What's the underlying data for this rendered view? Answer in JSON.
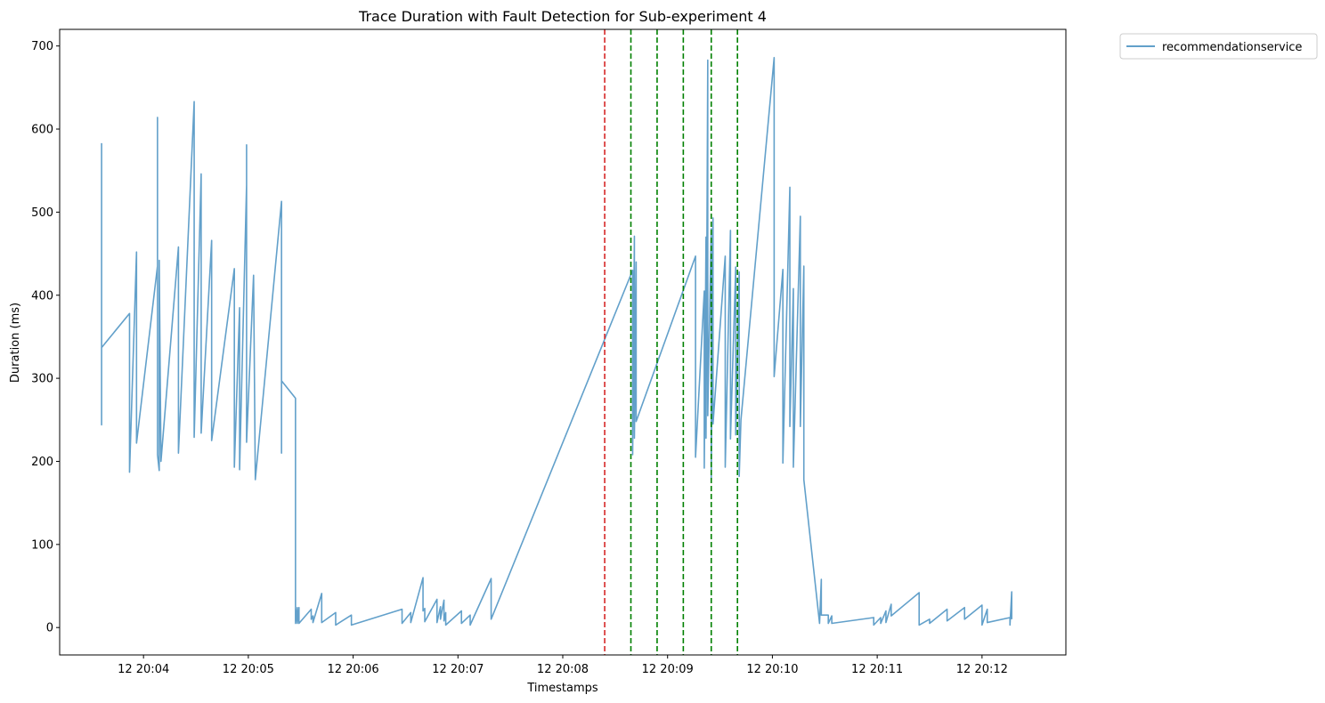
{
  "chart_data": {
    "type": "line",
    "title": "Trace Duration with Fault Detection for Sub-experiment 4",
    "xlabel": "Timestamps",
    "ylabel": "Duration (ms)",
    "ylim": [
      -33,
      720
    ],
    "xlim": [
      "12 20:03:12",
      "12 20:12:48"
    ],
    "yticks": [
      0,
      100,
      200,
      300,
      400,
      500,
      600,
      700
    ],
    "xticks": [
      {
        "t": "12 20:04:00",
        "label": "12 20:04"
      },
      {
        "t": "12 20:05:00",
        "label": "12 20:05"
      },
      {
        "t": "12 20:06:00",
        "label": "12 20:06"
      },
      {
        "t": "12 20:07:00",
        "label": "12 20:07"
      },
      {
        "t": "12 20:08:00",
        "label": "12 20:08"
      },
      {
        "t": "12 20:09:00",
        "label": "12 20:09"
      },
      {
        "t": "12 20:10:00",
        "label": "12 20:10"
      },
      {
        "t": "12 20:11:00",
        "label": "12 20:11"
      },
      {
        "t": "12 20:12:00",
        "label": "12 20:12"
      }
    ],
    "legend_position": "outside top-right",
    "grid": false,
    "series": [
      {
        "name": "recommendationservice",
        "color": "#1f77b4",
        "points": [
          [
            "12 20:03:36",
            583
          ],
          [
            "12 20:03:36",
            244
          ],
          [
            "12 20:03:36",
            337
          ],
          [
            "12 20:03:52",
            378
          ],
          [
            "12 20:03:52",
            187
          ],
          [
            "12 20:03:56",
            452
          ],
          [
            "12 20:03:56",
            222
          ],
          [
            "12 20:04:08",
            435
          ],
          [
            "12 20:04:08",
            614
          ],
          [
            "12 20:04:08",
            208
          ],
          [
            "12 20:04:09",
            189
          ],
          [
            "12 20:04:09",
            442
          ],
          [
            "12 20:04:10",
            200
          ],
          [
            "12 20:04:20",
            458
          ],
          [
            "12 20:04:20",
            210
          ],
          [
            "12 20:04:29",
            633
          ],
          [
            "12 20:04:29",
            229
          ],
          [
            "12 20:04:33",
            546
          ],
          [
            "12 20:04:33",
            234
          ],
          [
            "12 20:04:39",
            466
          ],
          [
            "12 20:04:39",
            225
          ],
          [
            "12 20:04:52",
            432
          ],
          [
            "12 20:04:52",
            193
          ],
          [
            "12 20:04:55",
            385
          ],
          [
            "12 20:04:55",
            190
          ],
          [
            "12 20:04:59",
            533
          ],
          [
            "12 20:04:59",
            581
          ],
          [
            "12 20:04:59",
            223
          ],
          [
            "12 20:05:03",
            424
          ],
          [
            "12 20:05:04",
            178
          ],
          [
            "12 20:05:19",
            513
          ],
          [
            "12 20:05:19",
            210
          ],
          [
            "12 20:05:19",
            297
          ],
          [
            "12 20:05:27",
            276
          ],
          [
            "12 20:05:27",
            5
          ],
          [
            "12 20:05:28",
            24
          ],
          [
            "12 20:05:28",
            5
          ],
          [
            "12 20:05:29",
            24
          ],
          [
            "12 20:05:29",
            5
          ],
          [
            "12 20:05:36",
            22
          ],
          [
            "12 20:05:36",
            10
          ],
          [
            "12 20:05:37",
            14
          ],
          [
            "12 20:05:37",
            6
          ],
          [
            "12 20:05:42",
            41
          ],
          [
            "12 20:05:42",
            6
          ],
          [
            "12 20:05:50",
            18
          ],
          [
            "12 20:05:50",
            3
          ],
          [
            "12 20:05:59",
            15
          ],
          [
            "12 20:05:59",
            3
          ],
          [
            "12 20:06:28",
            22
          ],
          [
            "12 20:06:28",
            5
          ],
          [
            "12 20:06:33",
            18
          ],
          [
            "12 20:06:33",
            6
          ],
          [
            "12 20:06:40",
            60
          ],
          [
            "12 20:06:40",
            20
          ],
          [
            "12 20:06:41",
            23
          ],
          [
            "12 20:06:41",
            7
          ],
          [
            "12 20:06:48",
            34
          ],
          [
            "12 20:06:48",
            6
          ],
          [
            "12 20:06:50",
            25
          ],
          [
            "12 20:06:50",
            10
          ],
          [
            "12 20:06:52",
            33
          ],
          [
            "12 20:06:52",
            8
          ],
          [
            "12 20:06:53",
            18
          ],
          [
            "12 20:06:53",
            3
          ],
          [
            "12 20:07:02",
            20
          ],
          [
            "12 20:07:02",
            5
          ],
          [
            "12 20:07:07",
            15
          ],
          [
            "12 20:07:07",
            3
          ],
          [
            "12 20:07:19",
            59
          ],
          [
            "12 20:07:19",
            10
          ],
          [
            "12 20:08:40",
            430
          ],
          [
            "12 20:08:40",
            208
          ],
          [
            "12 20:08:41",
            471
          ],
          [
            "12 20:08:41",
            228
          ],
          [
            "12 20:08:42",
            440
          ],
          [
            "12 20:08:42",
            248
          ],
          [
            "12 20:09:16",
            447
          ],
          [
            "12 20:09:16",
            205
          ],
          [
            "12 20:09:21",
            405
          ],
          [
            "12 20:09:21",
            192
          ],
          [
            "12 20:09:22",
            470
          ],
          [
            "12 20:09:22",
            228
          ],
          [
            "12 20:09:23",
            683
          ],
          [
            "12 20:09:23",
            255
          ],
          [
            "12 20:09:25",
            480
          ],
          [
            "12 20:09:25",
            178
          ],
          [
            "12 20:09:26",
            493
          ],
          [
            "12 20:09:26",
            245
          ],
          [
            "12 20:09:33",
            447
          ],
          [
            "12 20:09:33",
            193
          ],
          [
            "12 20:09:36",
            478
          ],
          [
            "12 20:09:36",
            227
          ],
          [
            "12 20:09:39",
            434
          ],
          [
            "12 20:09:39",
            232
          ],
          [
            "12 20:09:41",
            428
          ],
          [
            "12 20:09:41",
            182
          ],
          [
            "12 20:09:42",
            250
          ],
          [
            "12 20:10:01",
            686
          ],
          [
            "12 20:10:01",
            302
          ],
          [
            "12 20:10:06",
            431
          ],
          [
            "12 20:10:06",
            198
          ],
          [
            "12 20:10:10",
            530
          ],
          [
            "12 20:10:10",
            242
          ],
          [
            "12 20:10:12",
            408
          ],
          [
            "12 20:10:12",
            193
          ],
          [
            "12 20:10:16",
            495
          ],
          [
            "12 20:10:16",
            242
          ],
          [
            "12 20:10:18",
            435
          ],
          [
            "12 20:10:18",
            212
          ],
          [
            "12 20:10:18",
            178
          ],
          [
            "12 20:10:27",
            5
          ],
          [
            "12 20:10:28",
            58
          ],
          [
            "12 20:10:28",
            15
          ],
          [
            "12 20:10:32",
            15
          ],
          [
            "12 20:10:32",
            5
          ],
          [
            "12 20:10:34",
            14
          ],
          [
            "12 20:10:34",
            5
          ],
          [
            "12 20:10:58",
            12
          ],
          [
            "12 20:10:58",
            3
          ],
          [
            "12 20:11:02",
            12
          ],
          [
            "12 20:11:02",
            5
          ],
          [
            "12 20:11:05",
            20
          ],
          [
            "12 20:11:05",
            6
          ],
          [
            "12 20:11:08",
            28
          ],
          [
            "12 20:11:08",
            14
          ],
          [
            "12 20:11:24",
            42
          ],
          [
            "12 20:11:24",
            3
          ],
          [
            "12 20:11:30",
            10
          ],
          [
            "12 20:11:30",
            5
          ],
          [
            "12 20:11:40",
            22
          ],
          [
            "12 20:11:40",
            8
          ],
          [
            "12 20:11:50",
            24
          ],
          [
            "12 20:11:50",
            10
          ],
          [
            "12 20:12:00",
            27
          ],
          [
            "12 20:12:00",
            3
          ],
          [
            "12 20:12:03",
            22
          ],
          [
            "12 20:12:03",
            6
          ],
          [
            "12 20:12:16",
            12
          ],
          [
            "12 20:12:16",
            3
          ],
          [
            "12 20:12:17",
            43
          ],
          [
            "12 20:12:17",
            10
          ]
        ]
      }
    ],
    "fault_markers": [
      {
        "t": "12 20:08:24",
        "color": "#d62728",
        "style": "dashed"
      }
    ],
    "detection_markers": [
      {
        "t": "12 20:08:39",
        "color": "#008000",
        "style": "dashed"
      },
      {
        "t": "12 20:08:54",
        "color": "#008000",
        "style": "dashed"
      },
      {
        "t": "12 20:09:09",
        "color": "#008000",
        "style": "dashed"
      },
      {
        "t": "12 20:09:25",
        "color": "#008000",
        "style": "dashed"
      },
      {
        "t": "12 20:09:40",
        "color": "#008000",
        "style": "dashed"
      }
    ]
  }
}
